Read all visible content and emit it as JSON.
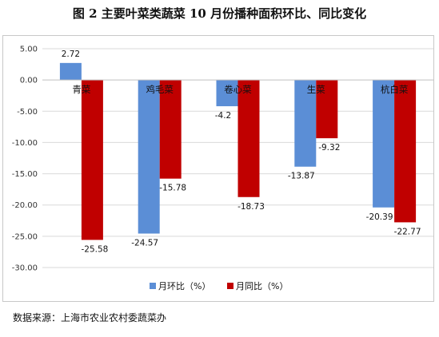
{
  "title": "图 2  主要叶菜类蔬菜 10 月份播种面积环比、同比变化",
  "source": "数据来源：上海市农业农村委蔬菜办",
  "colors": {
    "mom": "#5b8ed6",
    "yoy": "#c00000",
    "grid": "#d9d9d9",
    "axis": "#bfbfbf"
  },
  "chart_data": {
    "type": "bar",
    "categories": [
      "青菜",
      "鸡毛菜",
      "卷心菜",
      "生菜",
      "杭白菜"
    ],
    "series": [
      {
        "name": "月环比（%）",
        "values": [
          2.72,
          -24.57,
          -4.2,
          -13.87,
          -20.39
        ]
      },
      {
        "name": "月同比（%）",
        "values": [
          -25.58,
          -15.78,
          -18.73,
          -9.32,
          -22.77
        ]
      }
    ],
    "value_labels": [
      [
        "2.72",
        "-24.57",
        "-4.2",
        "-13.87",
        "-20.39"
      ],
      [
        "-25.58",
        "-15.78",
        "-18.73",
        "-9.32",
        "-22.77"
      ]
    ],
    "ylim": [
      -30,
      5
    ],
    "yticks": [
      5,
      0,
      -5,
      -10,
      -15,
      -20,
      -25,
      -30
    ],
    "ytick_labels": [
      "5.00",
      "0.00",
      "-5.00",
      "-10.00",
      "-15.00",
      "-20.00",
      "-25.00",
      "-30.00"
    ],
    "grid": true,
    "legend": "bottom",
    "title": "",
    "xlabel": "",
    "ylabel": ""
  }
}
